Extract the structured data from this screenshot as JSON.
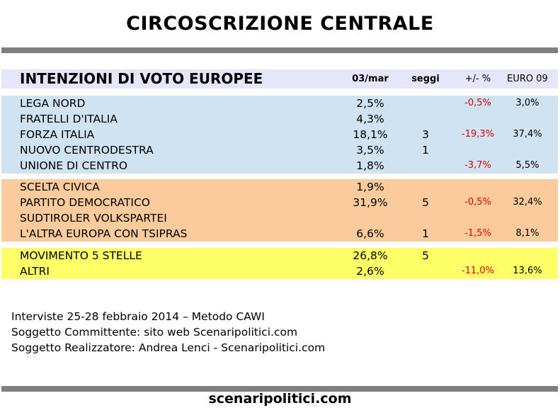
{
  "title": "CIRCOSCRIZIONE CENTRALE",
  "header": {
    "label": "INTENZIONI DI VOTO EUROPEE",
    "col_date": "03/mar",
    "col_seats": "seggi",
    "col_diff": "+/- %",
    "col_euro": "EURO 09"
  },
  "chart_data": {
    "type": "table",
    "title": "INTENZIONI DI VOTO EUROPEE",
    "columns": [
      "03/mar",
      "seggi",
      "+/- %",
      "EURO 09"
    ],
    "groups": [
      {
        "color": "#cfe3f3",
        "rows": [
          {
            "party": "LEGA NORD",
            "pct": "2,5%",
            "seats": "",
            "diff": "-0,5%",
            "euro09": "3,0%"
          },
          {
            "party": "FRATELLI D'ITALIA",
            "pct": "4,3%",
            "seats": "",
            "diff": "",
            "euro09": ""
          },
          {
            "party": "FORZA ITALIA",
            "pct": "18,1%",
            "seats": "3",
            "diff": "-19,3%",
            "euro09": "37,4%"
          },
          {
            "party": "NUOVO CENTRODESTRA",
            "pct": "3,5%",
            "seats": "1",
            "diff": "",
            "euro09": ""
          },
          {
            "party": "UNIONE DI CENTRO",
            "pct": "1,8%",
            "seats": "",
            "diff": "-3,7%",
            "euro09": "5,5%"
          }
        ]
      },
      {
        "color": "#fbcb9c",
        "rows": [
          {
            "party": "SCELTA CIVICA",
            "pct": "1,9%",
            "seats": "",
            "diff": "",
            "euro09": ""
          },
          {
            "party": "PARTITO DEMOCRATICO",
            "pct": "31,9%",
            "seats": "5",
            "diff": "-0,5%",
            "euro09": "32,4%"
          },
          {
            "party": "SUDTIROLER VOLKSPARTEI",
            "pct": "",
            "seats": "",
            "diff": "",
            "euro09": ""
          },
          {
            "party": "L'ALTRA EUROPA CON TSIPRAS",
            "pct": "6,6%",
            "seats": "1",
            "diff": "-1,5%",
            "euro09": "8,1%"
          }
        ]
      },
      {
        "color": "#ffff66",
        "rows": [
          {
            "party": "MOVIMENTO 5 STELLE",
            "pct": "26,8%",
            "seats": "5",
            "diff": "",
            "euro09": ""
          },
          {
            "party": "ALTRI",
            "pct": "2,6%",
            "seats": "",
            "diff": "-11,0%",
            "euro09": "13,6%"
          }
        ]
      }
    ]
  },
  "notes": [
    "Interviste 25-28 febbraio 2014 – Metodo CAWI",
    "Soggetto Committente: sito web Scenaripolitici.com",
    "Soggetto Realizzatore: Andrea Lenci - Scenaripolitici.com"
  ],
  "footer": "scenaripolitici.com"
}
